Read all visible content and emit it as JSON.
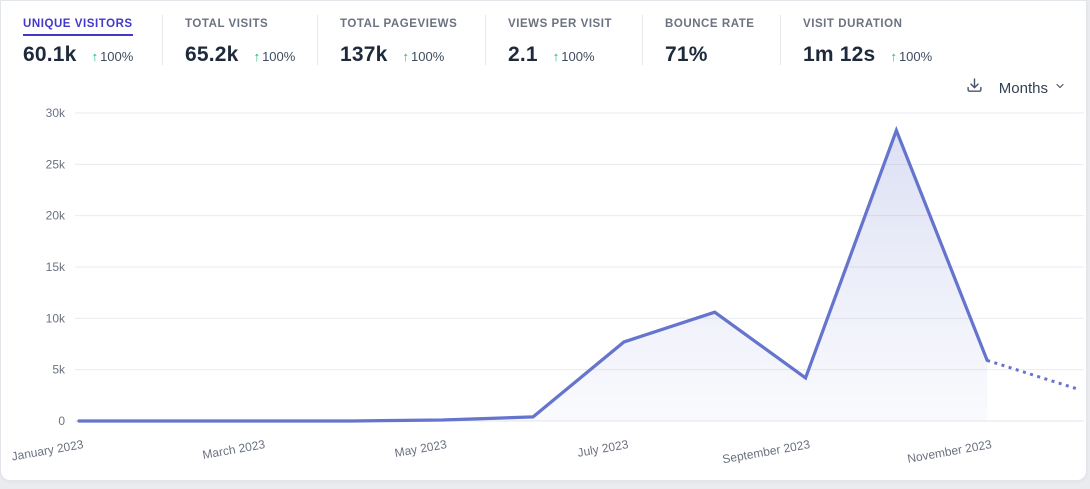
{
  "header": {
    "metrics": [
      {
        "label": "UNIQUE VISITORS",
        "value": "60.1k",
        "arrow": "↑",
        "change": "100%",
        "active": true
      },
      {
        "label": "TOTAL VISITS",
        "value": "65.2k",
        "arrow": "↑",
        "change": "100%",
        "active": false
      },
      {
        "label": "TOTAL PAGEVIEWS",
        "value": "137k",
        "arrow": "↑",
        "change": "100%",
        "active": false
      },
      {
        "label": "VIEWS PER VISIT",
        "value": "2.1",
        "arrow": "↑",
        "change": "100%",
        "active": false
      },
      {
        "label": "BOUNCE RATE",
        "value": "71%",
        "arrow": "",
        "change": "",
        "active": false
      },
      {
        "label": "VISIT DURATION",
        "value": "1m 12s",
        "arrow": "↑",
        "change": "100%",
        "active": false
      }
    ]
  },
  "controls": {
    "interval": "Months"
  },
  "colors": {
    "accent": "#4338ca",
    "line": "#6574cd",
    "area_from": "rgba(101,116,205,0.22)",
    "area_to": "rgba(101,116,205,0.03)",
    "positive": "#10b981",
    "grid": "#e9ebf0",
    "axis_text": "#6b7280"
  },
  "chart_data": {
    "type": "area",
    "title": "Unique visitors by month",
    "x": [
      "January 2023",
      "February 2023",
      "March 2023",
      "April 2023",
      "May 2023",
      "June 2023",
      "July 2023",
      "August 2023",
      "September 2023",
      "October 2023",
      "November 2023",
      "December 2023"
    ],
    "series": [
      {
        "name": "Unique visitors",
        "values": [
          0,
          0,
          0,
          0,
          100,
          400,
          7700,
          10600,
          4200,
          28300,
          5900,
          3100
        ]
      }
    ],
    "solid_until_index": 10,
    "dashed_segment": "November 2023 to December 2023 (projection)",
    "ylim": [
      0,
      30000
    ],
    "yticks": [
      0,
      5000,
      10000,
      15000,
      20000,
      25000,
      30000
    ],
    "ytick_labels": [
      "0",
      "5k",
      "10k",
      "15k",
      "20k",
      "25k",
      "30k"
    ],
    "xtick_indices": [
      0,
      2,
      4,
      6,
      8,
      10
    ],
    "xtick_labels": [
      "January 2023",
      "March 2023",
      "May 2023",
      "July 2023",
      "September 2023",
      "November 2023"
    ],
    "grid": true,
    "legend": "none"
  }
}
